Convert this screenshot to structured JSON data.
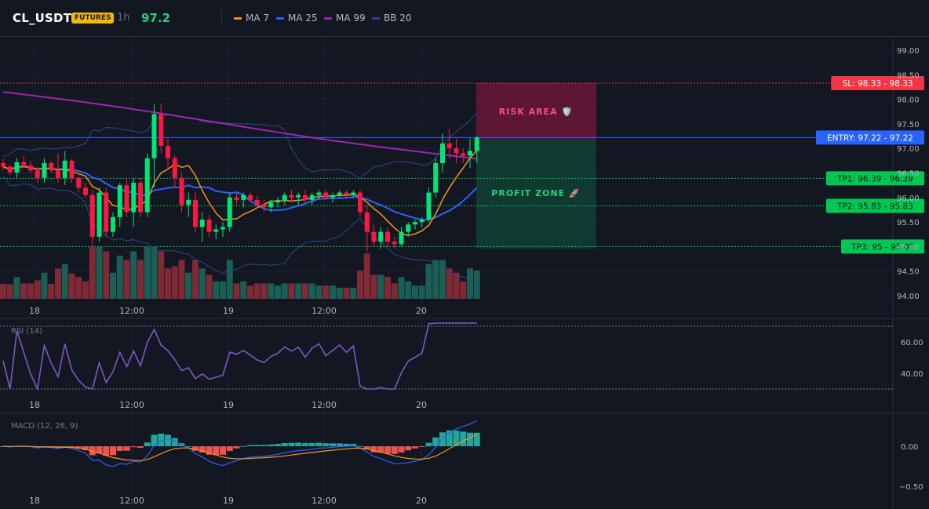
{
  "header": {
    "symbol": "CL_USDT",
    "badge": "FUTURES",
    "timeframe": "1h",
    "price": "97.2",
    "legend": [
      {
        "label": "MA 7",
        "color": "#f7931a"
      },
      {
        "label": "MA 25",
        "color": "#2962ff"
      },
      {
        "label": "MA 99",
        "color": "#9c27b0"
      },
      {
        "label": "BB 20",
        "color": "#2a4a8f"
      }
    ]
  },
  "price_axis": [
    "99.00",
    "98.50",
    "98.00",
    "97.50",
    "97.00",
    "96.50",
    "96.00",
    "95.50",
    "95.00",
    "94.50",
    "94.00"
  ],
  "time_axis": [
    "18",
    "12:00",
    "19",
    "12:00",
    "20"
  ],
  "levels": [
    {
      "label": "SL: 98.33 - 98.33",
      "value": 98.33,
      "color": "#f23645"
    },
    {
      "label": "ENTRY: 97.22 - 97.22",
      "value": 97.22,
      "color": "#2962ff"
    },
    {
      "label": "TP1: 96.39 - 96.39",
      "value": 96.39,
      "color": "#00c853"
    },
    {
      "label": "TP2: 95.83 - 95.83",
      "value": 95.83,
      "color": "#00c853"
    },
    {
      "label": "TP3: 95 - 95.00",
      "value": 95.0,
      "color": "#00c853"
    }
  ],
  "zones": {
    "risk": "RISK AREA 🛡️",
    "profit": "PROFIT ZONE 🚀"
  },
  "rsi": {
    "label": "RSI (14)",
    "axis": [
      "60.00",
      "40.00"
    ]
  },
  "macd": {
    "label": "MACD (12, 26, 9)",
    "axis": [
      "0.00",
      "−0.50"
    ]
  },
  "colors": {
    "up": "#26a69a",
    "down": "#ef5350",
    "candle_up": "#00e676",
    "candle_down": "#ff1744"
  },
  "chart_data": {
    "type": "candlestick",
    "price_range": [
      94.0,
      99.0
    ],
    "candles": [
      [
        96.7,
        96.79,
        96.55,
        96.63
      ],
      [
        96.63,
        96.68,
        96.45,
        96.51
      ],
      [
        96.51,
        96.8,
        96.4,
        96.72
      ],
      [
        96.72,
        96.85,
        96.6,
        96.65
      ],
      [
        96.65,
        96.75,
        96.5,
        96.55
      ],
      [
        96.55,
        96.62,
        96.3,
        96.4
      ],
      [
        96.4,
        96.8,
        96.3,
        96.7
      ],
      [
        96.7,
        96.74,
        96.5,
        96.55
      ],
      [
        96.55,
        96.9,
        96.3,
        96.4
      ],
      [
        96.4,
        96.95,
        96.25,
        96.75
      ],
      [
        96.75,
        96.78,
        96.3,
        96.4
      ],
      [
        96.4,
        96.5,
        96.1,
        96.2
      ],
      [
        96.2,
        96.3,
        96.0,
        96.05
      ],
      [
        96.05,
        96.15,
        95.0,
        95.2
      ],
      [
        95.2,
        96.2,
        95.1,
        96.1
      ],
      [
        96.1,
        96.2,
        95.2,
        95.3
      ],
      [
        95.3,
        95.7,
        95.2,
        95.6
      ],
      [
        95.6,
        96.3,
        95.4,
        96.25
      ],
      [
        96.25,
        96.4,
        95.6,
        95.7
      ],
      [
        95.7,
        96.4,
        95.4,
        96.3
      ],
      [
        96.3,
        96.4,
        95.6,
        95.7
      ],
      [
        95.7,
        96.9,
        95.6,
        96.8
      ],
      [
        96.8,
        97.9,
        96.2,
        97.7
      ],
      [
        97.7,
        97.9,
        96.9,
        97.05
      ],
      [
        97.05,
        97.2,
        96.6,
        96.8
      ],
      [
        96.8,
        96.85,
        96.2,
        96.4
      ],
      [
        96.4,
        96.5,
        95.7,
        95.85
      ],
      [
        95.85,
        96.1,
        95.6,
        95.95
      ],
      [
        95.95,
        96.1,
        95.3,
        95.4
      ],
      [
        95.4,
        95.7,
        95.1,
        95.55
      ],
      [
        95.55,
        95.65,
        95.2,
        95.3
      ],
      [
        95.3,
        95.45,
        95.15,
        95.35
      ],
      [
        95.35,
        95.5,
        95.2,
        95.4
      ],
      [
        95.4,
        96.1,
        95.3,
        96.0
      ],
      [
        96.0,
        96.1,
        95.85,
        95.95
      ],
      [
        95.95,
        96.1,
        95.8,
        96.05
      ],
      [
        96.05,
        96.1,
        95.9,
        95.95
      ],
      [
        95.95,
        96.05,
        95.8,
        95.85
      ],
      [
        95.85,
        95.95,
        95.7,
        95.8
      ],
      [
        95.8,
        95.95,
        95.7,
        95.9
      ],
      [
        95.9,
        96.0,
        95.8,
        95.95
      ],
      [
        95.95,
        96.1,
        95.85,
        96.05
      ],
      [
        96.05,
        96.15,
        95.9,
        96.0
      ],
      [
        96.0,
        96.1,
        95.85,
        96.05
      ],
      [
        96.05,
        96.15,
        95.9,
        95.95
      ],
      [
        95.95,
        96.1,
        95.85,
        96.05
      ],
      [
        96.05,
        96.15,
        95.95,
        96.1
      ],
      [
        96.1,
        96.15,
        95.95,
        96.0
      ],
      [
        96.0,
        96.1,
        95.9,
        96.05
      ],
      [
        96.05,
        96.15,
        96.0,
        96.1
      ],
      [
        96.1,
        96.15,
        96.0,
        96.05
      ],
      [
        96.05,
        96.15,
        96.0,
        96.1
      ],
      [
        96.1,
        96.15,
        95.6,
        95.7
      ],
      [
        95.7,
        95.85,
        94.9,
        95.3
      ],
      [
        95.3,
        95.45,
        95.0,
        95.1
      ],
      [
        95.1,
        95.4,
        94.95,
        95.3
      ],
      [
        95.3,
        95.4,
        95.0,
        95.1
      ],
      [
        95.1,
        95.2,
        94.95,
        95.05
      ],
      [
        95.05,
        95.4,
        95.0,
        95.3
      ],
      [
        95.3,
        95.5,
        95.2,
        95.45
      ],
      [
        95.45,
        95.55,
        95.35,
        95.5
      ],
      [
        95.5,
        95.6,
        95.4,
        95.55
      ],
      [
        95.55,
        96.2,
        95.5,
        96.1
      ],
      [
        96.1,
        96.8,
        96.0,
        96.7
      ],
      [
        96.7,
        97.3,
        96.5,
        97.1
      ],
      [
        97.1,
        97.4,
        96.8,
        97.0
      ],
      [
        97.0,
        97.2,
        96.7,
        96.9
      ],
      [
        96.9,
        97.0,
        96.7,
        96.85
      ],
      [
        96.85,
        97.2,
        96.6,
        96.95
      ],
      [
        96.95,
        97.25,
        96.7,
        97.22
      ]
    ]
  }
}
